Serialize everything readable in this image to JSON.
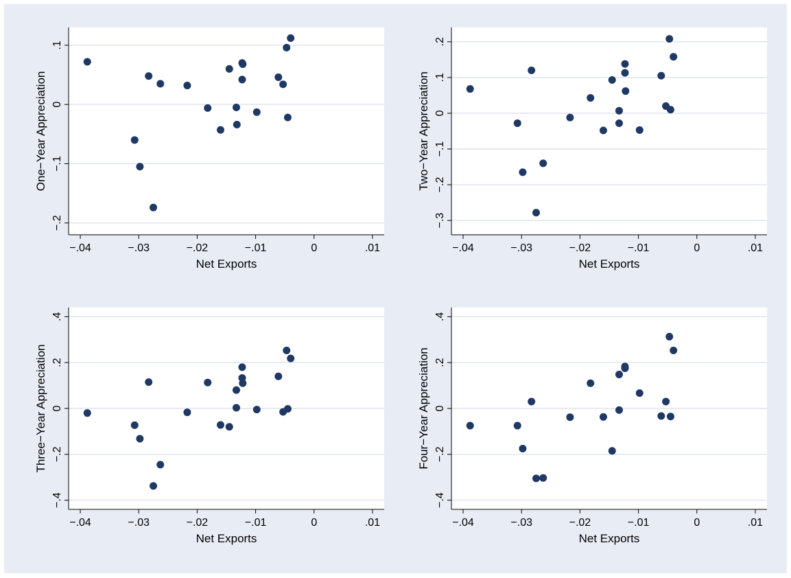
{
  "colors": {
    "background": "#e8ecf4",
    "plot_area": "#ffffff",
    "gridline": "#e0e4ec",
    "marker": "#1f3864",
    "axis": "#000000"
  },
  "chart_data": [
    {
      "type": "scatter",
      "xlabel": "Net Exports",
      "ylabel": "One−Year Appreciation",
      "xlim": [
        -0.042,
        0.012
      ],
      "ylim": [
        -0.22,
        0.13
      ],
      "xticks": [
        -0.04,
        -0.03,
        -0.02,
        -0.01,
        0,
        0.01
      ],
      "xtick_labels": [
        "−.04",
        "−.03",
        "−.02",
        "−.01",
        "0",
        ".01"
      ],
      "yticks": [
        -0.2,
        -0.1,
        0,
        0.1
      ],
      "ytick_labels": [
        "−.2",
        "−.1",
        "0",
        ".1"
      ],
      "grid": true,
      "points": [
        [
          -0.0388,
          0.072
        ],
        [
          -0.0307,
          -0.06
        ],
        [
          -0.0298,
          -0.105
        ],
        [
          -0.0283,
          0.048
        ],
        [
          -0.0275,
          -0.174
        ],
        [
          -0.0263,
          0.035
        ],
        [
          -0.0217,
          0.032
        ],
        [
          -0.0182,
          -0.006
        ],
        [
          -0.016,
          -0.043
        ],
        [
          -0.0145,
          0.06
        ],
        [
          -0.0133,
          -0.005
        ],
        [
          -0.0132,
          -0.034
        ],
        [
          -0.0123,
          0.07
        ],
        [
          -0.0123,
          0.042
        ],
        [
          -0.0122,
          0.068
        ],
        [
          -0.0098,
          -0.013
        ],
        [
          -0.0061,
          0.046
        ],
        [
          -0.0053,
          0.034
        ],
        [
          -0.0047,
          0.096
        ],
        [
          -0.0045,
          -0.022
        ],
        [
          -0.004,
          0.112
        ]
      ]
    },
    {
      "type": "scatter",
      "xlabel": "Net Exports",
      "ylabel": "Two−Year Appreciation",
      "xlim": [
        -0.042,
        0.012
      ],
      "ylim": [
        -0.34,
        0.24
      ],
      "xticks": [
        -0.04,
        -0.03,
        -0.02,
        -0.01,
        0,
        0.01
      ],
      "xtick_labels": [
        "−.04",
        "−.03",
        "−.02",
        "−.01",
        "0",
        ".01"
      ],
      "yticks": [
        -0.3,
        -0.2,
        -0.1,
        0,
        0.1,
        0.2
      ],
      "ytick_labels": [
        "−.3",
        "−.2",
        "−.1",
        "0",
        ".1",
        ".2"
      ],
      "grid": true,
      "points": [
        [
          -0.0388,
          0.068
        ],
        [
          -0.0307,
          -0.028
        ],
        [
          -0.0298,
          -0.165
        ],
        [
          -0.0283,
          0.12
        ],
        [
          -0.0275,
          -0.278
        ],
        [
          -0.0263,
          -0.14
        ],
        [
          -0.0217,
          -0.012
        ],
        [
          -0.0182,
          0.043
        ],
        [
          -0.016,
          -0.048
        ],
        [
          -0.0145,
          0.093
        ],
        [
          -0.0133,
          0.007
        ],
        [
          -0.0133,
          -0.028
        ],
        [
          -0.0123,
          0.138
        ],
        [
          -0.0123,
          0.113
        ],
        [
          -0.0122,
          0.062
        ],
        [
          -0.0098,
          -0.047
        ],
        [
          -0.0061,
          0.105
        ],
        [
          -0.0053,
          0.02
        ],
        [
          -0.0047,
          0.208
        ],
        [
          -0.0045,
          0.01
        ],
        [
          -0.004,
          0.158
        ]
      ]
    },
    {
      "type": "scatter",
      "xlabel": "Net Exports",
      "ylabel": "Three−Year Appreciation",
      "xlim": [
        -0.042,
        0.012
      ],
      "ylim": [
        -0.44,
        0.44
      ],
      "xticks": [
        -0.04,
        -0.03,
        -0.02,
        -0.01,
        0,
        0.01
      ],
      "xtick_labels": [
        "−.04",
        "−.03",
        "−.02",
        "−.01",
        "0",
        ".01"
      ],
      "yticks": [
        -0.4,
        -0.2,
        0,
        0.2,
        0.4
      ],
      "ytick_labels": [
        "−.4",
        "−.2",
        "0",
        ".2",
        ".4"
      ],
      "grid": true,
      "points": [
        [
          -0.0388,
          -0.02
        ],
        [
          -0.0307,
          -0.073
        ],
        [
          -0.0298,
          -0.132
        ],
        [
          -0.0283,
          0.115
        ],
        [
          -0.0275,
          -0.338
        ],
        [
          -0.0263,
          -0.245
        ],
        [
          -0.0217,
          -0.017
        ],
        [
          -0.0182,
          0.113
        ],
        [
          -0.016,
          -0.072
        ],
        [
          -0.0145,
          -0.08
        ],
        [
          -0.0133,
          0.003
        ],
        [
          -0.0133,
          0.08
        ],
        [
          -0.0123,
          0.18
        ],
        [
          -0.0123,
          0.133
        ],
        [
          -0.0122,
          0.11
        ],
        [
          -0.0098,
          -0.005
        ],
        [
          -0.0061,
          0.14
        ],
        [
          -0.0053,
          -0.015
        ],
        [
          -0.0047,
          0.253
        ],
        [
          -0.0045,
          -0.002
        ],
        [
          -0.004,
          0.218
        ]
      ]
    },
    {
      "type": "scatter",
      "xlabel": "Net Exports",
      "ylabel": "Four−Year Appreciation",
      "xlim": [
        -0.042,
        0.012
      ],
      "ylim": [
        -0.44,
        0.44
      ],
      "xticks": [
        -0.04,
        -0.03,
        -0.02,
        -0.01,
        0,
        0.01
      ],
      "xtick_labels": [
        "−.04",
        "−.03",
        "−.02",
        "−.01",
        "0",
        ".01"
      ],
      "yticks": [
        -0.4,
        -0.2,
        0,
        0.2,
        0.4
      ],
      "ytick_labels": [
        "−.4",
        "−.2",
        "0",
        ".2",
        ".4"
      ],
      "grid": true,
      "points": [
        [
          -0.0388,
          -0.075
        ],
        [
          -0.0307,
          -0.075
        ],
        [
          -0.0298,
          -0.175
        ],
        [
          -0.0283,
          0.03
        ],
        [
          -0.0275,
          -0.305
        ],
        [
          -0.0263,
          -0.303
        ],
        [
          -0.0217,
          -0.038
        ],
        [
          -0.0182,
          0.11
        ],
        [
          -0.016,
          -0.037
        ],
        [
          -0.0145,
          -0.185
        ],
        [
          -0.0133,
          0.148
        ],
        [
          -0.0133,
          -0.007
        ],
        [
          -0.0123,
          0.183
        ],
        [
          -0.0123,
          0.175
        ],
        [
          -0.0098,
          0.067
        ],
        [
          -0.0061,
          -0.033
        ],
        [
          -0.0053,
          0.03
        ],
        [
          -0.0047,
          0.313
        ],
        [
          -0.0045,
          -0.035
        ],
        [
          -0.004,
          0.253
        ]
      ]
    }
  ]
}
